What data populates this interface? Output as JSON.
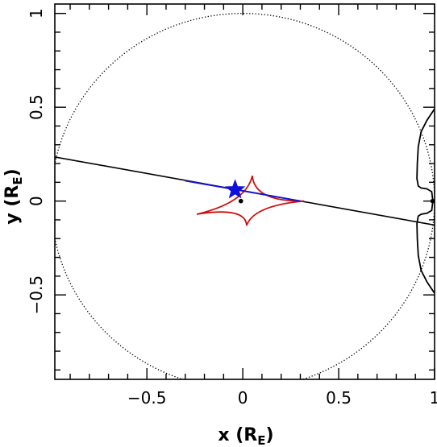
{
  "chart_data": {
    "type": "scatter",
    "title": "",
    "xlabel": "x (R",
    "xlabel_sub": "E",
    "xlabel_close": ")",
    "ylabel": "y (R",
    "ylabel_sub": "E",
    "ylabel_close": ")",
    "xlim": [
      -0.98,
      1.0
    ],
    "ylim": [
      -0.95,
      1.05
    ],
    "xticks": [
      {
        "value": -0.5,
        "label": "−0.5"
      },
      {
        "value": 0,
        "label": "0"
      },
      {
        "value": 0.5,
        "label": "0.5"
      },
      {
        "value": 1,
        "label": "1"
      }
    ],
    "yticks": [
      {
        "value": -0.5,
        "label": "−0.5"
      },
      {
        "value": 0,
        "label": "0"
      },
      {
        "value": 0.5,
        "label": "0.5"
      },
      {
        "value": 1,
        "label": "1"
      }
    ],
    "colors": {
      "axes": "#000000",
      "critical_curve": "#000000",
      "trajectory": "#000000",
      "caustic": "#cc1111",
      "source_track": "#1010dd",
      "source_star": "#1010dd"
    },
    "einstein_ring": {
      "center": [
        0,
        0
      ],
      "radius": 1.0,
      "style": "dotted"
    },
    "planet_critical_curves": [
      {
        "x": [
          0.999,
          0.96,
          0.93,
          0.915,
          0.91,
          0.908,
          0.915,
          0.93,
          0.96,
          0.985,
          0.99
        ],
        "y": [
          0.49,
          0.43,
          0.37,
          0.29,
          0.2,
          0.12,
          0.08,
          0.07,
          0.065,
          0.05,
          0.01
        ]
      },
      {
        "x": [
          0.99,
          0.985,
          0.96,
          0.93,
          0.915,
          0.908,
          0.91,
          0.915,
          0.93,
          0.96,
          0.999
        ],
        "y": [
          -0.01,
          -0.05,
          -0.065,
          -0.07,
          -0.08,
          -0.12,
          -0.2,
          -0.29,
          -0.37,
          -0.43,
          -0.49
        ]
      }
    ],
    "planet_marker": {
      "x": 0.99,
      "y": 0.0
    },
    "lens_star": {
      "x": -0.01,
      "y": 0.0
    },
    "source_trajectory": {
      "x": [
        -0.98,
        1.0
      ],
      "y": [
        0.235,
        -0.128
      ]
    },
    "caustic": {
      "cusps": [
        {
          "x": 0.05,
          "y": 0.135
        },
        {
          "x": 0.32,
          "y": 0.0
        },
        {
          "x": 0.02,
          "y": -0.13
        },
        {
          "x": -0.24,
          "y": -0.07
        }
      ]
    },
    "source_track": {
      "x": [
        -0.3,
        0.3
      ],
      "y": [
        0.108,
        0.0
      ]
    },
    "source_position": {
      "x": -0.04,
      "y": 0.06
    }
  }
}
